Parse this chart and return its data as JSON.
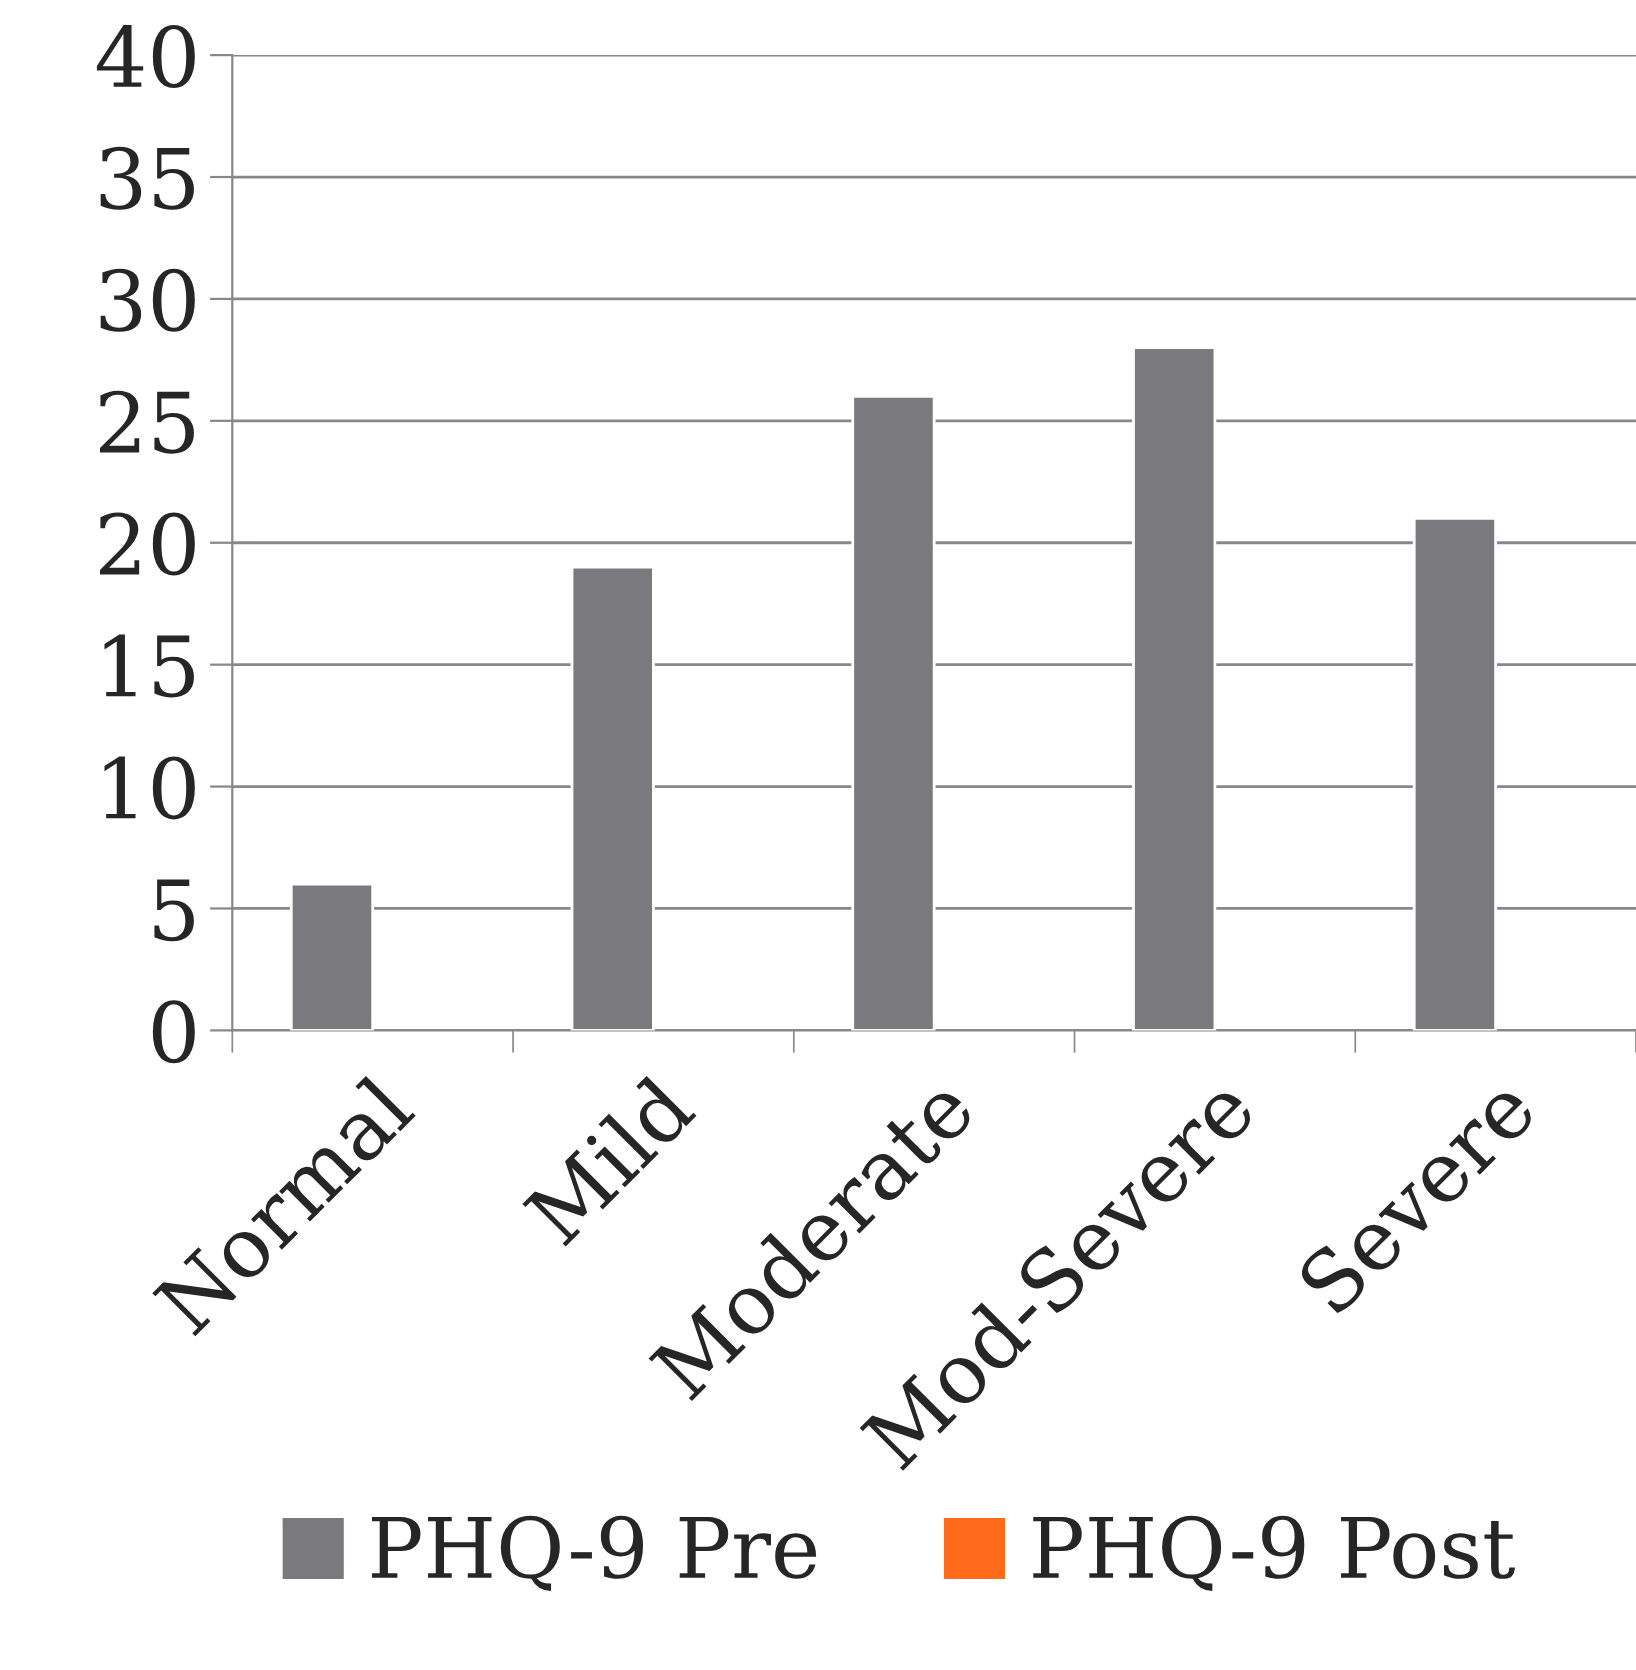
{
  "chart_data": {
    "type": "bar",
    "categories": [
      "Normal",
      "Mild",
      "Moderate",
      "Mod-Severe",
      "Severe"
    ],
    "series": [
      {
        "name": "PHQ-9 Pre",
        "color": "#7a7a7e",
        "values": [
          6,
          19,
          26,
          28,
          21
        ]
      },
      {
        "name": "PHQ-9 Post",
        "color": "#ff6b1a",
        "values": [
          null,
          null,
          null,
          null,
          null
        ]
      }
    ],
    "ylim": [
      0,
      40
    ],
    "yticks": [
      0,
      5,
      10,
      15,
      20,
      25,
      30,
      35,
      40
    ],
    "grid": "y",
    "legend": "bottom"
  }
}
